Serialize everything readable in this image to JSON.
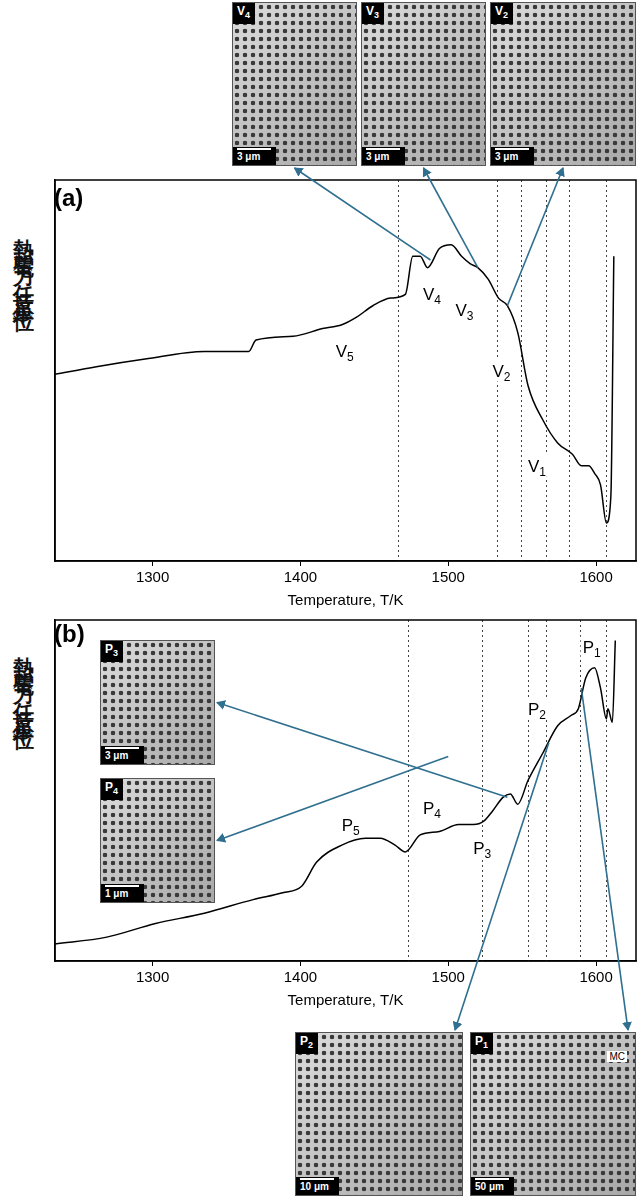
{
  "chart_data": [
    {
      "type": "line",
      "panel_label": "(a)",
      "x_label": "Temperature, T/K",
      "y_label": "熱起電力（任意単位）",
      "x": [
        1234,
        1262,
        1295,
        1335,
        1365,
        1370,
        1395,
        1415,
        1428,
        1438,
        1449,
        1461,
        1471,
        1476,
        1481,
        1486,
        1494,
        1502,
        1509,
        1515,
        1520,
        1527,
        1534,
        1540,
        1547,
        1554,
        1564,
        1574,
        1584,
        1590,
        1595,
        1599,
        1603,
        1607,
        1610,
        1612
      ],
      "values": [
        49,
        51,
        53,
        55,
        55,
        58,
        59,
        61,
        62,
        64,
        67,
        69,
        70,
        80,
        80,
        77,
        82,
        83,
        80,
        78,
        77,
        74,
        69,
        67,
        60,
        46,
        37,
        31,
        28,
        25,
        25,
        23,
        20,
        10,
        17,
        80
      ],
      "color": "#000000",
      "xlim": [
        1234,
        1627
      ],
      "xticks": [
        1300,
        1400,
        1500,
        1600
      ],
      "ylim": [
        0,
        100
      ],
      "yticks": [],
      "tick_labels": "x",
      "grid": false,
      "vertical_lines": [
        1466,
        1533,
        1549,
        1566,
        1582,
        1607
      ],
      "annotations": [
        {
          "text": "V5",
          "x": 1430,
          "y": 55
        },
        {
          "text": "V4",
          "x": 1489,
          "y": 70
        },
        {
          "text": "V3",
          "x": 1511,
          "y": 66
        },
        {
          "text": "V2",
          "x": 1536,
          "y": 50
        },
        {
          "text": "V1",
          "x": 1560,
          "y": 25
        }
      ],
      "insets": [
        {
          "label": "V4",
          "scale_bar": "3 μm",
          "x": 1488,
          "y": 79
        },
        {
          "label": "V3",
          "scale_bar": "3 μm",
          "x": 1520,
          "y": 77
        },
        {
          "label": "V2",
          "scale_bar": "3 μm",
          "x": 1540,
          "y": 67
        }
      ]
    },
    {
      "type": "line",
      "panel_label": "(b)",
      "x_label": "Temperature, T/K",
      "y_label": "熱起電力（任意単位）",
      "x": [
        1234,
        1269,
        1302,
        1335,
        1368,
        1388,
        1401,
        1411,
        1428,
        1444,
        1454,
        1464,
        1471,
        1481,
        1494,
        1507,
        1517,
        1524,
        1530,
        1537,
        1542,
        1547,
        1554,
        1564,
        1574,
        1583,
        1588,
        1593,
        1599,
        1603,
        1607,
        1608,
        1611,
        1613
      ],
      "values": [
        5,
        7,
        11,
        14,
        18,
        20,
        22,
        29,
        34,
        36,
        36,
        34,
        32,
        37,
        38,
        40,
        40,
        41,
        44,
        48,
        49,
        46,
        53,
        61,
        69,
        72,
        74,
        83,
        86,
        80,
        71,
        74,
        70,
        94
      ],
      "color": "#000000",
      "xlim": [
        1234,
        1627
      ],
      "xticks": [
        1300,
        1400,
        1500,
        1600
      ],
      "ylim": [
        0,
        100
      ],
      "yticks": [],
      "tick_labels": "x",
      "grid": false,
      "vertical_lines": [
        1473,
        1523,
        1554,
        1566,
        1589,
        1607
      ],
      "annotations": [
        {
          "text": "P5",
          "x": 1434,
          "y": 40
        },
        {
          "text": "P4",
          "x": 1489,
          "y": 45
        },
        {
          "text": "P3",
          "x": 1523,
          "y": 33
        },
        {
          "text": "P2",
          "x": 1560,
          "y": 74
        },
        {
          "text": "P1",
          "x": 1597,
          "y": 92
        }
      ],
      "insets": [
        {
          "label": "P3",
          "scale_bar": "3 μm",
          "x": 1540,
          "y": 48
        },
        {
          "label": "P4",
          "scale_bar": "1 μm",
          "x": 1500,
          "y": 60
        },
        {
          "label": "P2",
          "scale_bar": "10 μm",
          "x": 1568,
          "y": 64
        },
        {
          "label": "P1",
          "scale_bar": "50 μm",
          "x": 1590,
          "y": 80,
          "inner_text": "MC"
        }
      ]
    }
  ]
}
